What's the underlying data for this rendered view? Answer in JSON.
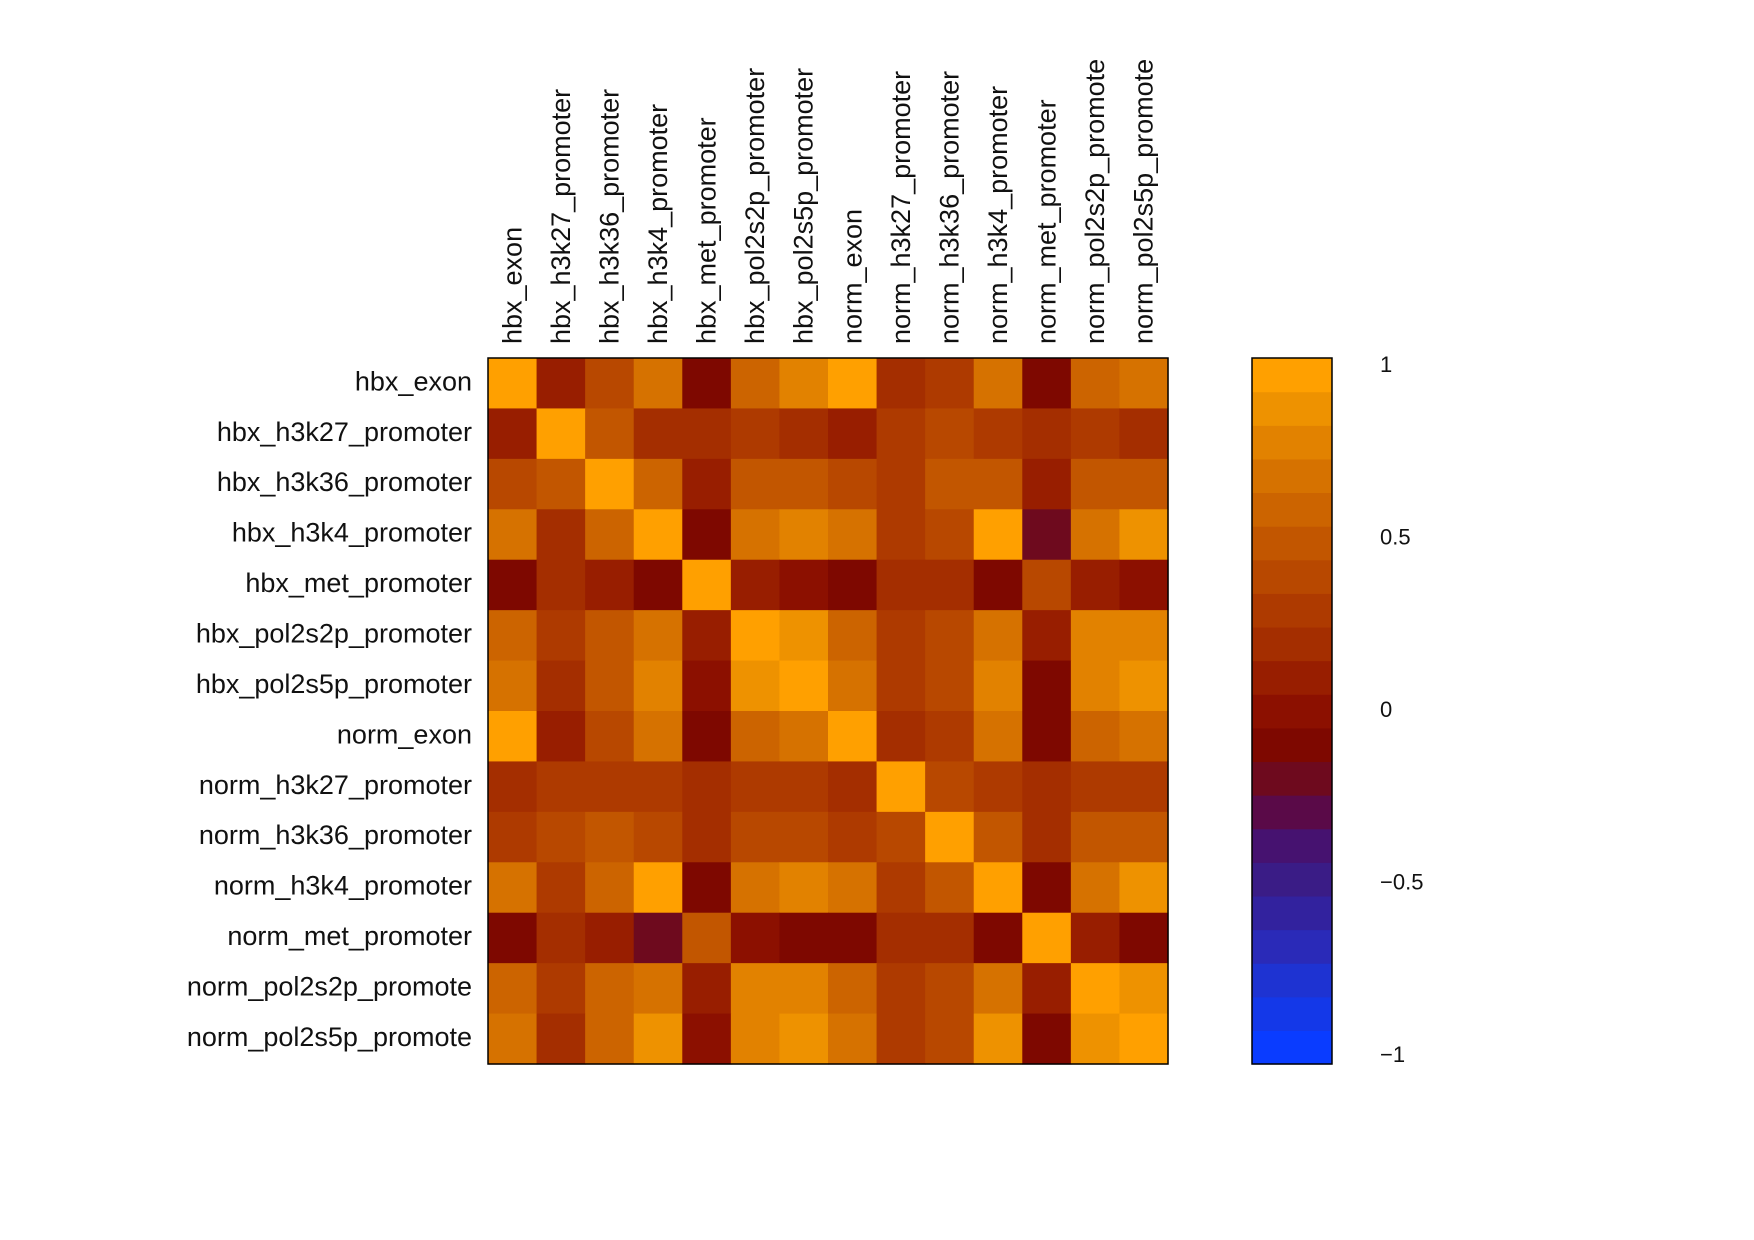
{
  "chart_data": {
    "type": "heatmap",
    "title": "",
    "labels": [
      "hbx_exon",
      "hbx_h3k27_promoter",
      "hbx_h3k36_promoter",
      "hbx_h3k4_promoter",
      "hbx_met_promoter",
      "hbx_pol2s2p_promoter",
      "hbx_pol2s5p_promoter",
      "norm_exon",
      "norm_h3k27_promoter",
      "norm_h3k36_promoter",
      "norm_h3k4_promoter",
      "norm_met_promoter",
      "norm_pol2s2p_promote",
      "norm_pol2s5p_promote"
    ],
    "col_labels": [
      "hbx_exon",
      "hbx_h3k27_promoter",
      "hbx_h3k36_promoter",
      "hbx_h3k4_promoter",
      "hbx_met_promoter",
      "hbx_pol2s2p_promoter",
      "hbx_pol2s5p_promoter",
      "norm_exon",
      "norm_h3k27_promoter",
      "norm_h3k36_promoter",
      "norm_h3k4_promoter",
      "norm_met_promoter",
      "norm_pol2s2p_promote",
      "norm_pol2s5p_promote"
    ],
    "row_labels": [
      "hbx_exon",
      "hbx_h3k27_promoter",
      "hbx_h3k36_promoter",
      "hbx_h3k4_promoter",
      "hbx_met_promoter",
      "hbx_pol2s2p_promoter",
      "hbx_pol2s5p_promoter",
      "norm_exon",
      "norm_h3k27_promoter",
      "norm_h3k36_promoter",
      "norm_h3k4_promoter",
      "norm_met_promoter",
      "norm_pol2s2p_promote",
      "norm_pol2s5p_promote"
    ],
    "matrix": [
      [
        1.0,
        0.05,
        0.4,
        0.7,
        -0.1,
        0.6,
        0.75,
        1.0,
        0.2,
        0.25,
        0.65,
        -0.1,
        0.55,
        0.65
      ],
      [
        0.05,
        1.0,
        0.5,
        0.15,
        0.15,
        0.25,
        0.15,
        0.1,
        0.25,
        0.35,
        0.3,
        0.15,
        0.3,
        0.15
      ],
      [
        0.4,
        0.5,
        1.0,
        0.55,
        0.05,
        0.45,
        0.45,
        0.4,
        0.25,
        0.45,
        0.5,
        0.05,
        0.5,
        0.5
      ],
      [
        0.7,
        0.15,
        0.55,
        1.0,
        -0.15,
        0.7,
        0.8,
        0.65,
        0.25,
        0.35,
        1.0,
        -0.25,
        0.65,
        0.85
      ],
      [
        -0.1,
        0.15,
        0.05,
        -0.1,
        1.0,
        0.05,
        0.0,
        -0.1,
        0.15,
        0.15,
        -0.1,
        0.4,
        0.05,
        0.0
      ],
      [
        0.6,
        0.25,
        0.45,
        0.7,
        0.05,
        1.0,
        0.85,
        0.55,
        0.25,
        0.4,
        0.65,
        0.05,
        0.8,
        0.8
      ],
      [
        0.65,
        0.15,
        0.45,
        0.8,
        0.0,
        0.85,
        1.0,
        0.65,
        0.25,
        0.4,
        0.75,
        -0.1,
        0.8,
        0.85
      ],
      [
        1.0,
        0.05,
        0.35,
        0.65,
        -0.1,
        0.55,
        0.7,
        1.0,
        0.15,
        0.25,
        0.65,
        -0.1,
        0.55,
        0.65
      ],
      [
        0.2,
        0.3,
        0.3,
        0.3,
        0.15,
        0.25,
        0.25,
        0.2,
        1.0,
        0.4,
        0.3,
        0.15,
        0.3,
        0.3
      ],
      [
        0.3,
        0.35,
        0.45,
        0.35,
        0.15,
        0.4,
        0.4,
        0.3,
        0.4,
        1.0,
        0.45,
        0.15,
        0.45,
        0.45
      ],
      [
        0.65,
        0.3,
        0.55,
        1.0,
        -0.1,
        0.65,
        0.75,
        0.65,
        0.3,
        0.45,
        1.0,
        -0.1,
        0.7,
        0.85
      ],
      [
        -0.1,
        0.2,
        0.1,
        -0.25,
        0.45,
        0.0,
        -0.1,
        -0.1,
        0.15,
        0.15,
        -0.1,
        1.0,
        0.05,
        -0.1
      ],
      [
        0.55,
        0.3,
        0.55,
        0.65,
        0.05,
        0.8,
        0.8,
        0.55,
        0.25,
        0.4,
        0.7,
        0.05,
        1.0,
        0.85
      ],
      [
        0.65,
        0.15,
        0.55,
        0.85,
        0.0,
        0.8,
        0.85,
        0.65,
        0.25,
        0.4,
        0.85,
        -0.1,
        0.85,
        1.0
      ]
    ],
    "color_scale": {
      "min": -1,
      "max": 1,
      "ticks": [
        "1",
        "0.5",
        "0",
        "−0.5",
        "−1"
      ],
      "colors": [
        "#0a3cff",
        "#1438e8",
        "#1e33d2",
        "#2a2ab8",
        "#32229e",
        "#3a1c86",
        "#461270",
        "#5a0a48",
        "#6e0a1e",
        "#7e0800",
        "#8c1000",
        "#981e00",
        "#a42e00",
        "#ae3a00",
        "#b84800",
        "#c25600",
        "#cc6400",
        "#d67200",
        "#e28200",
        "#ee9200",
        "#ffa000"
      ]
    },
    "legend_placement": "right",
    "grid": false
  }
}
